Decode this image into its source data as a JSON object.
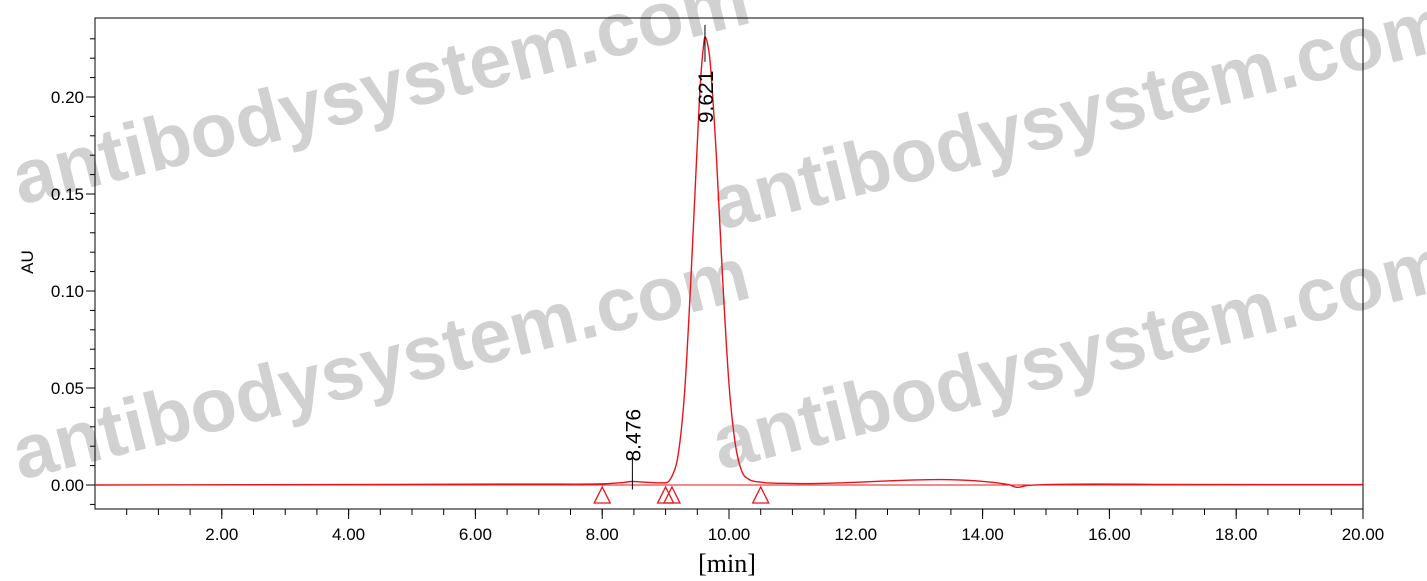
{
  "chart_data": {
    "type": "line",
    "title": "",
    "xlabel": "[min]",
    "ylabel": "AU",
    "xlim": [
      0,
      20
    ],
    "ylim": [
      -0.012,
      0.24
    ],
    "x_ticks": [
      "2.00",
      "4.00",
      "6.00",
      "8.00",
      "10.00",
      "12.00",
      "14.00",
      "16.00",
      "18.00",
      "20.00"
    ],
    "y_ticks": [
      "0.00",
      "0.05",
      "0.10",
      "0.15",
      "0.20"
    ],
    "series": [
      {
        "color": "#e8141c",
        "x": [
          0,
          7.0,
          8.0,
          8.3,
          8.476,
          8.7,
          9.0,
          9.1,
          9.2,
          9.3,
          9.4,
          9.5,
          9.55,
          9.6,
          9.621,
          9.65,
          9.7,
          9.8,
          9.9,
          10.0,
          10.1,
          10.2,
          10.3,
          10.5,
          11.0,
          14.4,
          14.55,
          14.7,
          15.0,
          17.0,
          20.0
        ],
        "y": [
          0,
          0.0005,
          0.0006,
          0.0012,
          0.0018,
          0.0014,
          0.0011,
          0.0045,
          0.016,
          0.048,
          0.107,
          0.176,
          0.208,
          0.227,
          0.231,
          0.229,
          0.219,
          0.17,
          0.106,
          0.052,
          0.021,
          0.0072,
          0.0032,
          0.0015,
          0.0008,
          0.0003,
          -0.0012,
          -0.0003,
          0.0002,
          0.0003,
          0.0002
        ]
      }
    ],
    "peaks": [
      {
        "rt": 8.476,
        "label": "8.476",
        "height": 0.0018
      },
      {
        "rt": 9.621,
        "label": "9.621",
        "height": 0.231
      }
    ],
    "integration_markers": [
      8.0,
      9.0,
      9.1,
      10.5
    ],
    "watermark": "antibodysystem.com"
  }
}
